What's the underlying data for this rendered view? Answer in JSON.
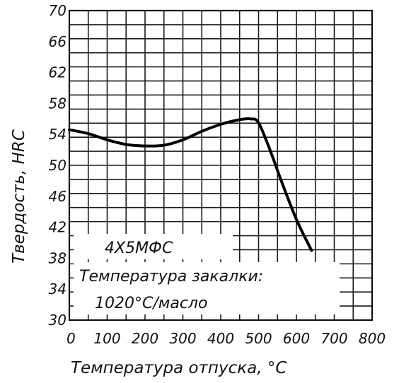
{
  "chart_data": {
    "type": "line",
    "xlabel": "Температура отпуска, °С",
    "ylabel": "Твердость, HRC",
    "xlim": [
      0,
      800
    ],
    "ylim": [
      30,
      70
    ],
    "x_ticks": [
      "0",
      "100",
      "200",
      "300",
      "400",
      "500",
      "600",
      "700",
      "800"
    ],
    "y_ticks": [
      "30",
      "34",
      "38",
      "42",
      "46",
      "50",
      "54",
      "58",
      "62",
      "66",
      "70"
    ],
    "grid": true,
    "annotations": {
      "steel_grade": "4Х5МФС",
      "quench_line1": "Температура закалки:",
      "quench_line2": "1020°С/масло"
    },
    "series": [
      {
        "x": [
          0,
          50,
          100,
          150,
          200,
          250,
          300,
          350,
          400,
          450,
          480,
          500,
          530,
          560,
          600,
          640
        ],
        "y": [
          54.6,
          54.1,
          53.3,
          52.7,
          52.5,
          52.6,
          53.3,
          54.4,
          55.3,
          55.9,
          56.0,
          55.5,
          52.0,
          48.0,
          43.0,
          39.0
        ]
      }
    ]
  }
}
